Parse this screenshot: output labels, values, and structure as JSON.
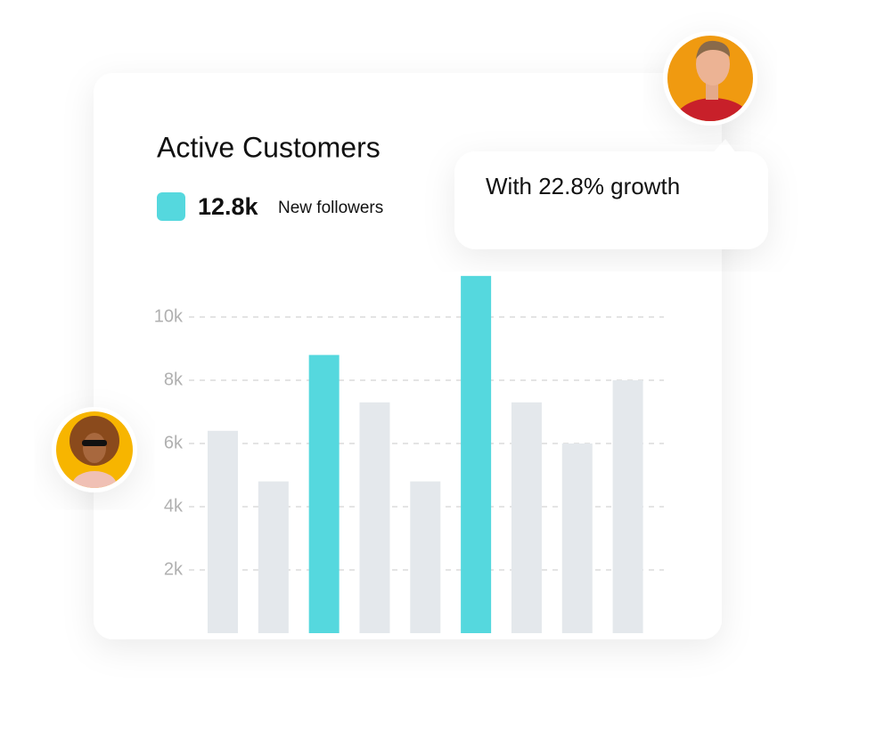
{
  "chart_data": {
    "type": "bar",
    "title": "Active Customers",
    "legend": [
      {
        "value": "12.8k",
        "label": "New followers",
        "color": "#55d8de"
      }
    ],
    "annotation": "With 22.8% growth",
    "categories": [
      null,
      null,
      null,
      null,
      null,
      null,
      null,
      null,
      null
    ],
    "values": [
      6400,
      4800,
      8800,
      7300,
      4800,
      11300,
      7300,
      6000,
      8000
    ],
    "colors": [
      "#e4e8ec",
      "#e4e8ec",
      "#55d8de",
      "#e4e8ec",
      "#e4e8ec",
      "#55d8de",
      "#e4e8ec",
      "#e4e8ec",
      "#e4e8ec"
    ],
    "ylim": [
      0,
      12000
    ],
    "yticks": [
      {
        "value": 2000,
        "label": "2k"
      },
      {
        "value": 4000,
        "label": "4k"
      },
      {
        "value": 6000,
        "label": "6k"
      },
      {
        "value": 8000,
        "label": "8k"
      },
      {
        "value": 10000,
        "label": "10k"
      }
    ],
    "grid": true
  }
}
